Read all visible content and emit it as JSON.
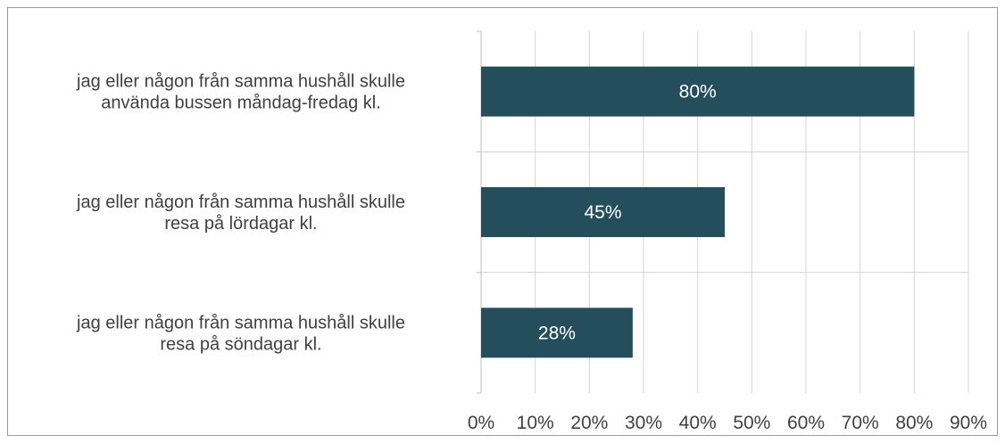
{
  "chart_data": {
    "type": "bar",
    "orientation": "horizontal",
    "categories": [
      [
        "jag eller någon från samma hushåll skulle",
        "använda bussen måndag-fredag kl."
      ],
      [
        "jag eller någon från samma hushåll skulle",
        "resa på lördagar kl."
      ],
      [
        "jag eller någon från samma hushåll skulle",
        "resa på söndagar kl."
      ]
    ],
    "values": [
      80,
      45,
      28
    ],
    "value_labels": [
      "80%",
      "45%",
      "28%"
    ],
    "xlim": [
      0,
      90
    ],
    "x_ticks": [
      0,
      10,
      20,
      30,
      40,
      50,
      60,
      70,
      80,
      90
    ],
    "x_tick_labels": [
      "0%",
      "10%",
      "20%",
      "30%",
      "40%",
      "50%",
      "60%",
      "70%",
      "80%",
      "90%"
    ],
    "grid": true,
    "legend": "none",
    "colors": {
      "bar": "#254e5c",
      "grid": "#d4d4d4",
      "axis": "#bfbfbf",
      "label_text": "#404040",
      "data_label_text": "#ffffff",
      "frame": "#9a9a9a"
    }
  }
}
